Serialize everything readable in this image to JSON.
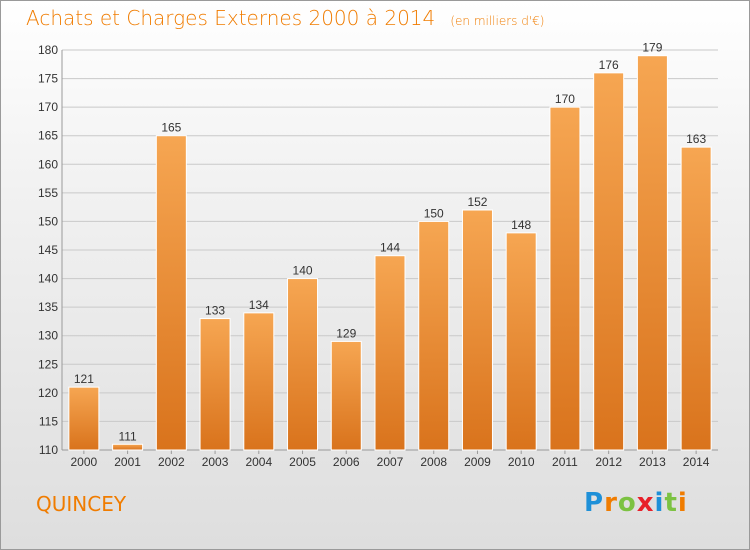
{
  "title": "Achats et Charges Externes 2000 à 2014",
  "unit_note": "(en milliers d'€)",
  "commune": "QUINCEY",
  "logo": {
    "letters": [
      "P",
      "r",
      "o",
      "x",
      "i",
      "t",
      "i"
    ],
    "colors": [
      "#1e90d8",
      "#f07c00",
      "#7cc242",
      "#e8202a",
      "#1e90d8",
      "#7cc242",
      "#f07c00"
    ]
  },
  "chart_data": {
    "type": "bar",
    "categories": [
      "2000",
      "2001",
      "2002",
      "2003",
      "2004",
      "2005",
      "2006",
      "2007",
      "2008",
      "2009",
      "2010",
      "2011",
      "2012",
      "2013",
      "2014"
    ],
    "values": [
      121,
      111,
      165,
      133,
      134,
      140,
      129,
      144,
      150,
      152,
      148,
      170,
      176,
      179,
      163
    ],
    "ylim": [
      110,
      180
    ],
    "yticks": [
      110,
      115,
      120,
      125,
      130,
      135,
      140,
      145,
      150,
      155,
      160,
      165,
      170,
      175,
      180
    ],
    "grid": true,
    "bar_color": "#f39a3a",
    "xlabel": "",
    "ylabel": ""
  }
}
